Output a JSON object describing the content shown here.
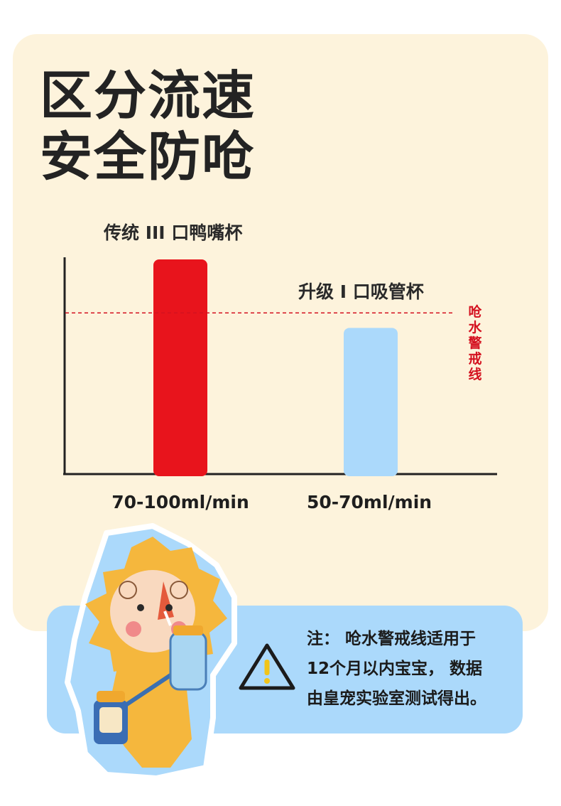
{
  "headline": {
    "line1": "区分流速",
    "line2": "安全防呛"
  },
  "chart_data": {
    "type": "bar",
    "categories": [
      "70-100ml/min",
      "50-70ml/min"
    ],
    "series_labels": [
      "传统 III 口鸭嘴杯",
      "升级 I 口吸管杯"
    ],
    "values": [
      100,
      68
    ],
    "colors": [
      "#e8141c",
      "#abd9fb"
    ],
    "reference_line": {
      "label": "呛水警戒线",
      "value": 75,
      "color": "#d4111f"
    },
    "ylim": [
      0,
      101
    ],
    "grid": false
  },
  "note": {
    "line1": "注：  呛水警戒线适用于",
    "line2": "12个月以内宝宝，  数据",
    "line3": "由皇宠实验室测试得出。"
  },
  "icons": {
    "warning": "warning-triangle-icon",
    "mascot": "lion-mascot"
  }
}
